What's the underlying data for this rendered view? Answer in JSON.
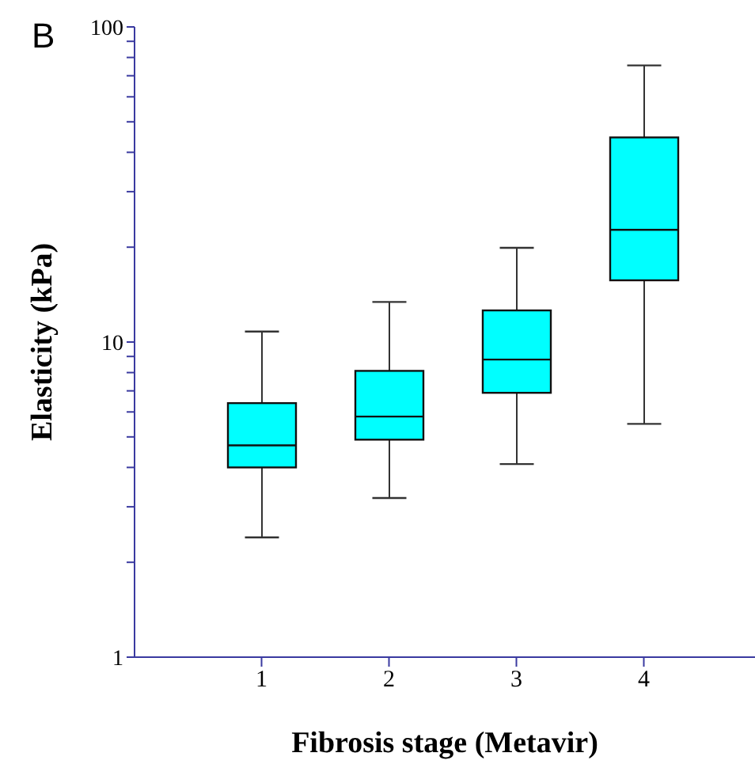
{
  "chart_data": {
    "type": "box",
    "categories": [
      "1",
      "2",
      "3",
      "4"
    ],
    "boxes": [
      {
        "low": 2.4,
        "q1": 4.0,
        "median": 4.7,
        "q3": 6.4,
        "high": 10.8
      },
      {
        "low": 3.2,
        "q1": 4.9,
        "median": 5.8,
        "q3": 8.1,
        "high": 13.4
      },
      {
        "low": 4.1,
        "q1": 6.9,
        "median": 8.8,
        "q3": 12.6,
        "high": 19.9
      },
      {
        "low": 5.5,
        "q1": 15.7,
        "median": 22.7,
        "q3": 44.6,
        "high": 75.5
      }
    ],
    "color": "#00ffff",
    "log": true,
    "ylim": [
      1,
      100
    ],
    "yticks": [
      1,
      {
        "value": 2,
        "label": null
      },
      {
        "value": 3,
        "label": null
      },
      {
        "value": 4,
        "label": null
      },
      {
        "value": 5,
        "label": null
      },
      {
        "value": 6,
        "label": null
      },
      {
        "value": 7,
        "label": null
      },
      {
        "value": 8,
        "label": null
      },
      {
        "value": 9,
        "label": null
      },
      10,
      {
        "value": 20,
        "label": null
      },
      {
        "value": 30,
        "label": null
      },
      {
        "value": 40,
        "label": null
      },
      {
        "value": 50,
        "label": null
      },
      {
        "value": 60,
        "label": null
      },
      {
        "value": 70,
        "label": null
      },
      {
        "value": 80,
        "label": null
      },
      {
        "value": 90,
        "label": null
      },
      100
    ],
    "xlabel": "Fibrosis stage (Metavir)",
    "ylabel": "Elasticity (kPa)",
    "annotations": [
      "B"
    ]
  }
}
